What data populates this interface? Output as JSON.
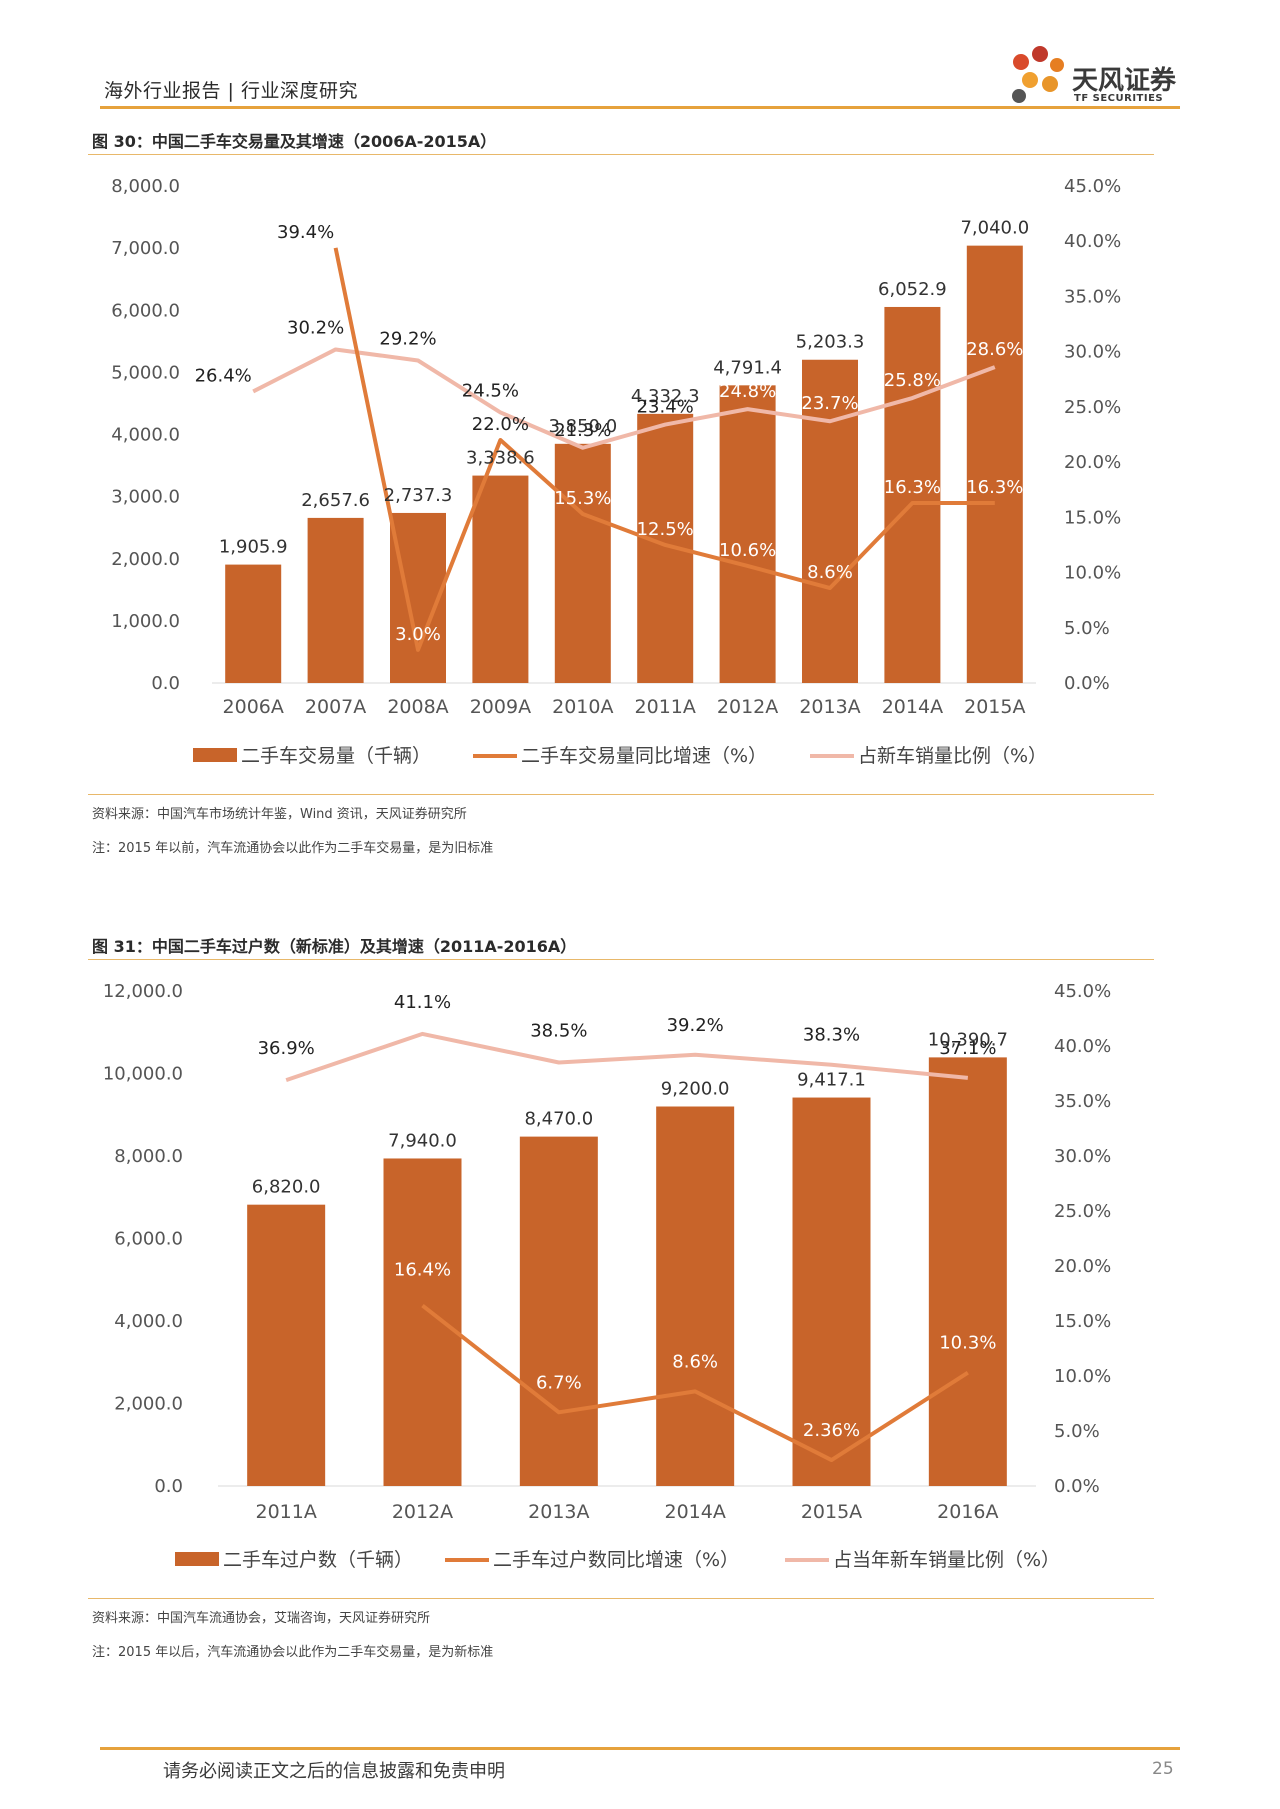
{
  "header": {
    "title": "海外行业报告 | 行业深度研究",
    "logo_cn": "天风证券",
    "logo_en": "TF SECURITIES"
  },
  "footer": {
    "disclaimer": "请务必阅读正文之后的信息披露和免责申明",
    "page_number": "25"
  },
  "colors": {
    "bar": "#c8642a",
    "growth_line": "#e07b39",
    "share_line": "#f0b8a8",
    "accent_rule": "#e6a23c"
  },
  "figures": [
    {
      "title": "图 30：中国二手车交易量及其增速（2006A-2015A）",
      "source": "资料来源：中国汽车市场统计年鉴，Wind 资讯，天风证券研究所",
      "note": "注：2015 年以前，汽车流通协会以此作为二手车交易量，是为旧标准"
    },
    {
      "title": "图 31：中国二手车过户数（新标准）及其增速（2011A-2016A）",
      "source": "资料来源：中国汽车流通协会，艾瑞咨询，天风证券研究所",
      "note": "注：2015 年以后，汽车流通协会以此作为二手车交易量，是为新标准"
    }
  ],
  "chart_data": [
    {
      "type": "bar",
      "categories": [
        "2006A",
        "2007A",
        "2008A",
        "2009A",
        "2010A",
        "2011A",
        "2012A",
        "2013A",
        "2014A",
        "2015A"
      ],
      "ylim": [
        0,
        8000
      ],
      "y2lim": [
        0,
        45
      ],
      "y_ticks": [
        "0.0",
        "1,000.0",
        "2,000.0",
        "3,000.0",
        "4,000.0",
        "5,000.0",
        "6,000.0",
        "7,000.0",
        "8,000.0"
      ],
      "y2_ticks": [
        "0.0%",
        "5.0%",
        "10.0%",
        "15.0%",
        "20.0%",
        "25.0%",
        "30.0%",
        "35.0%",
        "40.0%",
        "45.0%"
      ],
      "legend_position": "bottom",
      "series": [
        {
          "name": "二手车交易量（千辆）",
          "kind": "bar",
          "axis": "left",
          "values": [
            1905.9,
            2657.6,
            2737.3,
            3338.6,
            3850.0,
            4332.3,
            4791.4,
            5203.3,
            6052.9,
            7040.0
          ],
          "labels": [
            "1,905.9",
            "2,657.6",
            "2,737.3",
            "3,338.6",
            "3,850.0",
            "4,332.3",
            "4,791.4",
            "5,203.3",
            "6,052.9",
            "7,040.0"
          ]
        },
        {
          "name": "二手车交易量同比增速（%）",
          "kind": "line",
          "axis": "right",
          "values": [
            null,
            39.4,
            3.0,
            22.0,
            15.3,
            12.5,
            10.6,
            8.6,
            16.3,
            16.3
          ],
          "labels": [
            "",
            "39.4%",
            "3.0%",
            "22.0%",
            "15.3%",
            "12.5%",
            "10.6%",
            "8.6%",
            "16.3%",
            "16.3%"
          ]
        },
        {
          "name": "占新车销量比例（%）",
          "kind": "line",
          "axis": "right",
          "values": [
            26.4,
            30.2,
            29.2,
            24.5,
            21.3,
            23.4,
            24.8,
            23.7,
            25.8,
            28.6
          ],
          "labels": [
            "26.4%",
            "30.2%",
            "29.2%",
            "24.5%",
            "21.3%",
            "23.4%",
            "24.8%",
            "23.7%",
            "25.8%",
            "28.6%"
          ]
        }
      ]
    },
    {
      "type": "bar",
      "categories": [
        "2011A",
        "2012A",
        "2013A",
        "2014A",
        "2015A",
        "2016A"
      ],
      "ylim": [
        0,
        12000
      ],
      "y2lim": [
        0,
        45
      ],
      "y_ticks": [
        "0.0",
        "2,000.0",
        "4,000.0",
        "6,000.0",
        "8,000.0",
        "10,000.0",
        "12,000.0"
      ],
      "y2_ticks": [
        "0.0%",
        "5.0%",
        "10.0%",
        "15.0%",
        "20.0%",
        "25.0%",
        "30.0%",
        "35.0%",
        "40.0%",
        "45.0%"
      ],
      "legend_position": "bottom",
      "series": [
        {
          "name": "二手车过户数（千辆）",
          "kind": "bar",
          "axis": "left",
          "values": [
            6820.0,
            7940.0,
            8470.0,
            9200.0,
            9417.1,
            10390.7
          ],
          "labels": [
            "6,820.0",
            "7,940.0",
            "8,470.0",
            "9,200.0",
            "9,417.1",
            "10,390.7"
          ]
        },
        {
          "name": "二手车过户数同比增速（%）",
          "kind": "line",
          "axis": "right",
          "values": [
            null,
            16.4,
            6.7,
            8.6,
            2.36,
            10.3
          ],
          "labels": [
            "",
            "16.4%",
            "6.7%",
            "8.6%",
            "2.36%",
            "10.3%"
          ]
        },
        {
          "name": "占当年新车销量比例（%）",
          "kind": "line",
          "axis": "right",
          "values": [
            36.9,
            41.1,
            38.5,
            39.2,
            38.3,
            37.1
          ],
          "labels": [
            "36.9%",
            "41.1%",
            "38.5%",
            "39.2%",
            "38.3%",
            "37.1%"
          ]
        }
      ]
    }
  ]
}
